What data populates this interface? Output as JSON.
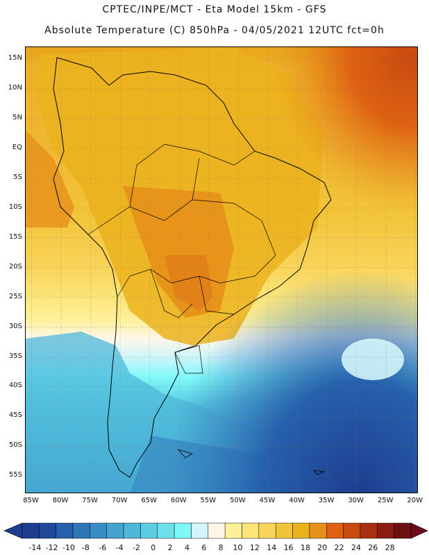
{
  "header": {
    "line1": "CPTEC/INPE/MCT -  Eta Model 15km - GFS",
    "line2": "Absolute Temperature (C) 850hPa - 04/05/2021 12UTC fct=0h"
  },
  "map": {
    "region": "South America",
    "lat_labels": [
      "15N",
      "10N",
      "5N",
      "EQ",
      "5S",
      "10S",
      "15S",
      "20S",
      "25S",
      "30S",
      "35S",
      "40S",
      "45S",
      "50S",
      "55S"
    ],
    "lat_values": [
      15,
      10,
      5,
      0,
      -5,
      -10,
      -15,
      -20,
      -25,
      -30,
      -35,
      -40,
      -45,
      -50,
      -55
    ],
    "lon_labels": [
      "85W",
      "80W",
      "75W",
      "70W",
      "65W",
      "60W",
      "55W",
      "50W",
      "45W",
      "40W",
      "35W",
      "30W",
      "25W",
      "20W"
    ],
    "lon_values": [
      -85,
      -80,
      -75,
      -70,
      -65,
      -60,
      -55,
      -50,
      -45,
      -40,
      -35,
      -30,
      -25,
      -20
    ],
    "extent": {
      "lon_min": -86,
      "lon_max": -19.5,
      "lat_min": -58,
      "lat_max": 17
    }
  },
  "legend": {
    "levels": [
      "-14",
      "-12",
      "-10",
      "-8",
      "-6",
      "-4",
      "-2",
      "0",
      "2",
      "4",
      "6",
      "8",
      "10",
      "12",
      "14",
      "16",
      "18",
      "20",
      "22",
      "24",
      "26",
      "28"
    ],
    "colors": [
      "#1e3d8f",
      "#1f4a9c",
      "#2660ac",
      "#2f76b9",
      "#3a8dc4",
      "#44a3cf",
      "#4fb8da",
      "#5ccde4",
      "#6ee0ec",
      "#7ef8f8",
      "#d3f5fb",
      "#fff7e6",
      "#fff09a",
      "#fde57a",
      "#f9d55d",
      "#f2c43a",
      "#ebb11d",
      "#e7901a",
      "#de6212",
      "#c84a10",
      "#a83010",
      "#8a1d12",
      "#6c1010"
    ],
    "under_color": "#1e3d8f",
    "over_color": "#6c0b1a"
  }
}
